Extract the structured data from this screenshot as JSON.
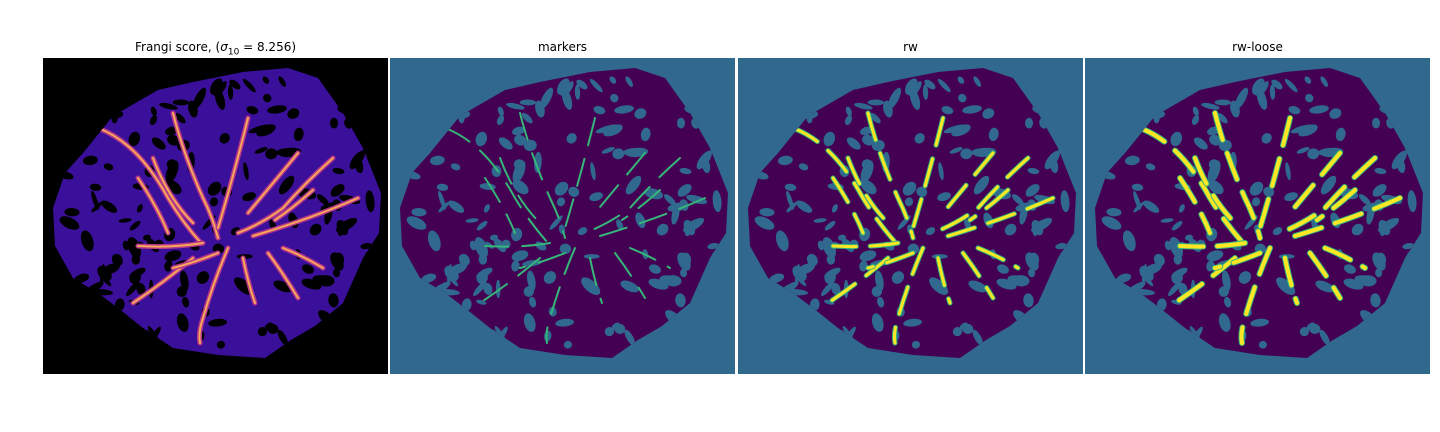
{
  "figure": {
    "panels": [
      {
        "id": "frangi",
        "title_prefix": "Frangi score, (",
        "title_sigma": "σ",
        "title_sub": "10",
        "title_suffix": " = 8.256)",
        "colormap": "magma",
        "background_color": "#000000",
        "tissue_color": "#3a0f9a",
        "vessel_color": "#f5a85a"
      },
      {
        "id": "markers",
        "title": "markers",
        "background_color": "#31688e",
        "foreground_color": "#440154",
        "marker_color": "#35b779"
      },
      {
        "id": "rw",
        "title": "rw",
        "background_color": "#31688e",
        "foreground_color": "#440154",
        "segment_color": "#fde725",
        "segment_edge_color": "#35b779"
      },
      {
        "id": "rw-loose",
        "title": "rw-loose",
        "background_color": "#31688e",
        "foreground_color": "#440154",
        "segment_color": "#fde725",
        "segment_edge_color": "#35b779"
      }
    ]
  }
}
